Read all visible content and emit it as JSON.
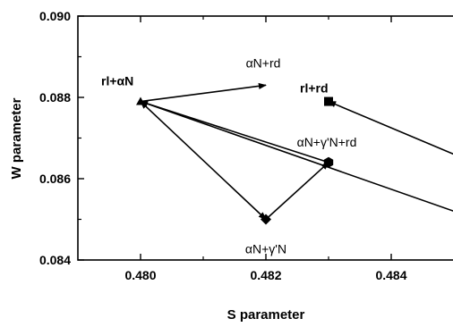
{
  "chart_data": {
    "type": "scatter",
    "xlabel": "S parameter",
    "ylabel": "W parameter",
    "xlim": [
      0.479,
      0.485
    ],
    "ylim": [
      0.084,
      0.09
    ],
    "x_ticks": [
      "0.480",
      "0.482",
      "0.484"
    ],
    "y_ticks": [
      "0.084",
      "0.086",
      "0.088",
      "0.090"
    ],
    "grid": false,
    "points": [
      {
        "id": "rl_aN",
        "label": "rl+αN",
        "x": 0.48,
        "y": 0.0879,
        "marker": "triangle",
        "label_bold": true
      },
      {
        "id": "aN_rd",
        "label": "αN+rd",
        "x": 0.482,
        "y": 0.0883,
        "marker": "none",
        "label_bold": false
      },
      {
        "id": "aN_gN",
        "label": "αN+γ'N",
        "x": 0.482,
        "y": 0.085,
        "marker": "diamond",
        "label_bold": false
      },
      {
        "id": "aN_gN_rd",
        "label": "αN+γ'N+rd",
        "x": 0.483,
        "y": 0.0864,
        "marker": "hexagon",
        "label_bold": false
      },
      {
        "id": "rl_rd",
        "label": "rl+rd",
        "x": 0.483,
        "y": 0.0879,
        "marker": "square",
        "label_bold": true
      }
    ],
    "arrows": [
      {
        "from": [
          0.48,
          0.0879
        ],
        "to": [
          0.482,
          0.0883
        ],
        "heads": "end"
      },
      {
        "from": [
          0.48,
          0.0879
        ],
        "to": [
          0.482,
          0.085
        ],
        "heads": "both"
      },
      {
        "from": [
          0.482,
          0.085
        ],
        "to": [
          0.483,
          0.0864
        ],
        "heads": "end"
      },
      {
        "from": [
          0.48,
          0.0879
        ],
        "to": [
          0.483,
          0.0864
        ],
        "heads": "start"
      },
      {
        "from": [
          0.485,
          0.0852
        ],
        "to": [
          0.48,
          0.0879
        ],
        "heads": "end"
      },
      {
        "from": [
          0.485,
          0.0866
        ],
        "to": [
          0.483,
          0.0879
        ],
        "heads": "end"
      }
    ]
  }
}
